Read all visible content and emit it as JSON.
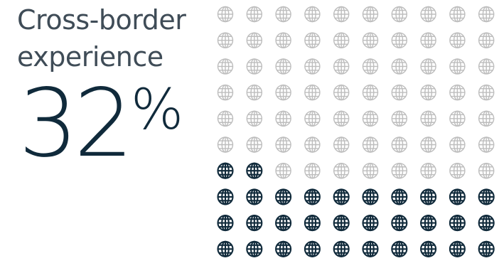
{
  "title": "Cross-border experience",
  "value_number": "32",
  "value_unit": "%",
  "colors": {
    "title": "#3f4c57",
    "value": "#102a3b",
    "highlighted_icon": "#102a3b",
    "muted_icon": "#bdbdbd"
  },
  "chart_data": {
    "type": "waffle",
    "icon": "globe-icon",
    "total_icons": 100,
    "highlighted_icons": 32,
    "value_percent": 32,
    "fill_order": "bottom-up"
  }
}
